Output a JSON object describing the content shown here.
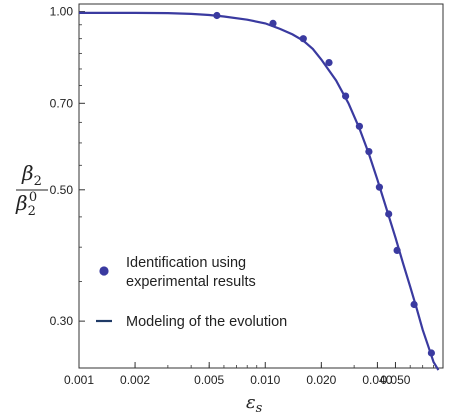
{
  "chart_data": {
    "type": "scatter",
    "xscale": "log",
    "yscale": "log",
    "xlim": [
      0.001,
      0.09
    ],
    "ylim": [
      0.25,
      1.03
    ],
    "grid": false,
    "legend_placement": "bottom-left",
    "xticks": [
      {
        "value": 0.001,
        "label": "0.001"
      },
      {
        "value": 0.002,
        "label": "0.002"
      },
      {
        "value": 0.005,
        "label": "0.005"
      },
      {
        "value": 0.01,
        "label": "0.010"
      },
      {
        "value": 0.02,
        "label": "0.020"
      },
      {
        "value": 0.04,
        "label": "0.040"
      },
      {
        "value": 0.05,
        "label": "0.050"
      }
    ],
    "yticks": [
      {
        "value": 1.0,
        "label": "1.00"
      },
      {
        "value": 0.7,
        "label": "0.70"
      },
      {
        "value": 0.5,
        "label": "0.50"
      },
      {
        "value": 0.3,
        "label": "0.30"
      }
    ],
    "xlabel": "εs",
    "ylabel_numerator": "β2",
    "ylabel_denominator": "β20",
    "series": [
      {
        "name": "Identification using experimental results",
        "kind": "points",
        "color": "#3a3aa0",
        "x": [
          0.0055,
          0.011,
          0.016,
          0.022,
          0.027,
          0.032,
          0.036,
          0.041,
          0.046,
          0.051,
          0.063,
          0.078
        ],
        "y": [
          0.985,
          0.955,
          0.9,
          0.82,
          0.72,
          0.64,
          0.58,
          0.505,
          0.455,
          0.395,
          0.32,
          0.265
        ]
      },
      {
        "name": "Modeling of the evolution",
        "kind": "line",
        "color": "#3a3aa0",
        "x": [
          0.001,
          0.002,
          0.003,
          0.004,
          0.005,
          0.006,
          0.008,
          0.01,
          0.012,
          0.014,
          0.016,
          0.018,
          0.02,
          0.024,
          0.028,
          0.032,
          0.036,
          0.04,
          0.045,
          0.05,
          0.055,
          0.06,
          0.065,
          0.07,
          0.075,
          0.08,
          0.085
        ],
        "y": [
          0.995,
          0.995,
          0.994,
          0.991,
          0.987,
          0.981,
          0.969,
          0.955,
          0.935,
          0.915,
          0.893,
          0.865,
          0.83,
          0.765,
          0.7,
          0.635,
          0.575,
          0.52,
          0.462,
          0.415,
          0.375,
          0.343,
          0.315,
          0.29,
          0.272,
          0.256,
          0.248
        ]
      }
    ]
  }
}
